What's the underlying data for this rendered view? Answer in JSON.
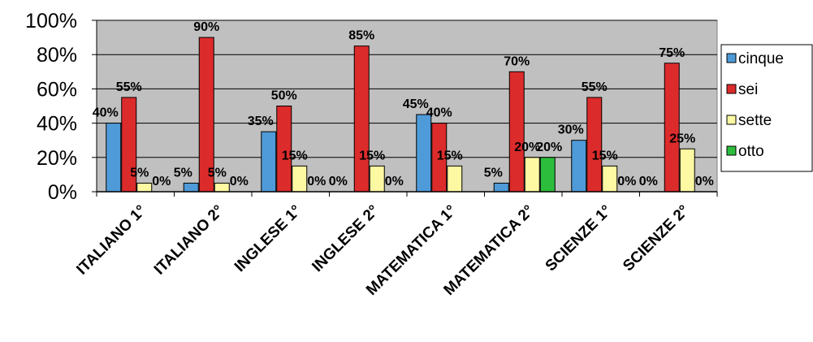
{
  "chart_data": {
    "type": "bar",
    "categories": [
      "ITALIANO 1°",
      "ITALIANO 2°",
      "INGLESE 1°",
      "INGLESE 2°",
      "MATEMATICA 1°",
      "MATEMATICA 2°",
      "SCIENZE 1°",
      "SCIENZE 2°"
    ],
    "series": [
      {
        "name": "cinque",
        "color": "#4f9ad8",
        "values": [
          40,
          5,
          35,
          0,
          45,
          5,
          30,
          0
        ]
      },
      {
        "name": "sei",
        "color": "#dc2b2b",
        "values": [
          55,
          90,
          50,
          85,
          40,
          70,
          55,
          75
        ]
      },
      {
        "name": "sette",
        "color": "#fdf8a2",
        "values": [
          5,
          5,
          15,
          15,
          15,
          20,
          15,
          25
        ]
      },
      {
        "name": "otto",
        "color": "#2cbd3c",
        "values": [
          0,
          0,
          0,
          0,
          0,
          20,
          0,
          0
        ]
      }
    ],
    "data_labels": [
      [
        "40%",
        "55%",
        "5%",
        "0%"
      ],
      [
        "5%",
        "90%",
        "5%",
        "0%"
      ],
      [
        "35%",
        "50%",
        "15%",
        "0%"
      ],
      [
        "0%",
        "85%",
        "15%",
        "0%"
      ],
      [
        "45%",
        "40%",
        "15%",
        ""
      ],
      [
        "5%",
        "70%",
        "20%",
        "20%"
      ],
      [
        "30%",
        "55%",
        "15%",
        "0%"
      ],
      [
        "0%",
        "75%",
        "25%",
        "0%"
      ]
    ],
    "y_ticks": [
      "0%",
      "20%",
      "40%",
      "60%",
      "80%",
      "100%"
    ],
    "ylim": [
      0,
      100
    ],
    "plot_background": "#c0c0c0",
    "grid": true,
    "legend": {
      "placement": "right",
      "entries": [
        "cinque",
        "sei",
        "sette",
        "otto"
      ]
    }
  }
}
